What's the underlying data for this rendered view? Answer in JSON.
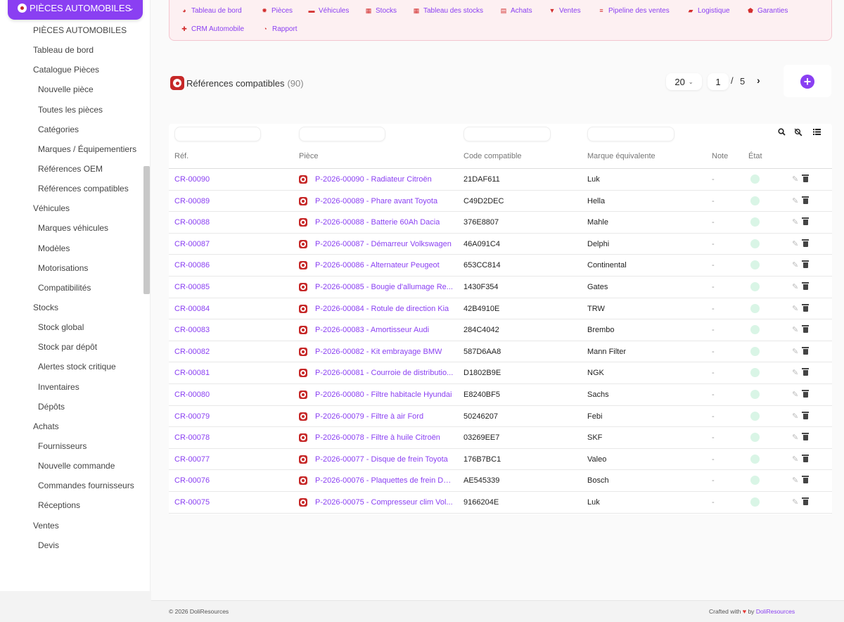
{
  "sidebar": {
    "brand": "PIÈCES AUTOMOBILES",
    "items": [
      {
        "label": "PIÈCES AUTOMOBILES",
        "sub": false
      },
      {
        "label": "Tableau de bord",
        "sub": false
      },
      {
        "label": "Catalogue Pièces",
        "sub": false
      },
      {
        "label": "Nouvelle pièce",
        "sub": true
      },
      {
        "label": "Toutes les pièces",
        "sub": true
      },
      {
        "label": "Catégories",
        "sub": true
      },
      {
        "label": "Marques / Équipementiers",
        "sub": true
      },
      {
        "label": "Références OEM",
        "sub": true
      },
      {
        "label": "Références compatibles",
        "sub": true
      },
      {
        "label": "Véhicules",
        "sub": false
      },
      {
        "label": "Marques véhicules",
        "sub": true
      },
      {
        "label": "Modèles",
        "sub": true
      },
      {
        "label": "Motorisations",
        "sub": true
      },
      {
        "label": "Compatibilités",
        "sub": true
      },
      {
        "label": "Stocks",
        "sub": false
      },
      {
        "label": "Stock global",
        "sub": true
      },
      {
        "label": "Stock par dépôt",
        "sub": true
      },
      {
        "label": "Alertes stock critique",
        "sub": true
      },
      {
        "label": "Inventaires",
        "sub": true
      },
      {
        "label": "Dépôts",
        "sub": true
      },
      {
        "label": "Achats",
        "sub": false
      },
      {
        "label": "Fournisseurs",
        "sub": true
      },
      {
        "label": "Nouvelle commande",
        "sub": true
      },
      {
        "label": "Commandes fournisseurs",
        "sub": true
      },
      {
        "label": "Réceptions",
        "sub": true
      },
      {
        "label": "Ventes",
        "sub": false
      },
      {
        "label": "Devis",
        "sub": true
      }
    ]
  },
  "topnav": [
    {
      "label": "Tableau de bord",
      "icon": "dashboard-icon",
      "glyph": "◕"
    },
    {
      "label": "Pièces",
      "icon": "gear-icon",
      "glyph": "✹"
    },
    {
      "label": "Véhicules",
      "icon": "car-icon",
      "glyph": "▬"
    },
    {
      "label": "Stocks",
      "icon": "boxes-icon",
      "glyph": "▦"
    },
    {
      "label": "Tableau des stocks",
      "icon": "table-icon",
      "glyph": "▦"
    },
    {
      "label": "Achats",
      "icon": "invoice-icon",
      "glyph": "▤"
    },
    {
      "label": "Ventes",
      "icon": "cart-icon",
      "glyph": "▼"
    },
    {
      "label": "Pipeline des ventes",
      "icon": "pipeline-icon",
      "glyph": "≡"
    },
    {
      "label": "Logistique",
      "icon": "truck-icon",
      "glyph": "▰"
    },
    {
      "label": "Garanties",
      "icon": "shield-icon",
      "glyph": "⬟"
    },
    {
      "label": "CRM Automobile",
      "icon": "user-plus-icon",
      "glyph": "✚"
    },
    {
      "label": "Rapport",
      "icon": "pie-chart-icon",
      "glyph": "◔"
    }
  ],
  "page": {
    "title": "Références compatibles",
    "count": "(90)"
  },
  "pager": {
    "limit": "20",
    "page": "1",
    "separator": "/",
    "total": "5"
  },
  "table": {
    "headers": [
      "Réf.",
      "Pièce",
      "Code compatible",
      "Marque équivalente",
      "Note",
      "État"
    ],
    "rows": [
      {
        "ref": "CR-00090",
        "piece": "P-2026-00090 - Radiateur Citroën",
        "code": "21DAF611",
        "brand": "Luk",
        "note": "-"
      },
      {
        "ref": "CR-00089",
        "piece": "P-2026-00089 - Phare avant Toyota",
        "code": "C49D2DEC",
        "brand": "Hella",
        "note": "-"
      },
      {
        "ref": "CR-00088",
        "piece": "P-2026-00088 - Batterie 60Ah Dacia",
        "code": "376E8807",
        "brand": "Mahle",
        "note": "-"
      },
      {
        "ref": "CR-00087",
        "piece": "P-2026-00087 - Démarreur Volkswagen",
        "code": "46A091C4",
        "brand": "Delphi",
        "note": "-"
      },
      {
        "ref": "CR-00086",
        "piece": "P-2026-00086 - Alternateur Peugeot",
        "code": "653CC814",
        "brand": "Continental",
        "note": "-"
      },
      {
        "ref": "CR-00085",
        "piece": "P-2026-00085 - Bougie d'allumage Re...",
        "code": "1430F354",
        "brand": "Gates",
        "note": "-"
      },
      {
        "ref": "CR-00084",
        "piece": "P-2026-00084 - Rotule de direction Kia",
        "code": "42B4910E",
        "brand": "TRW",
        "note": "-"
      },
      {
        "ref": "CR-00083",
        "piece": "P-2026-00083 - Amortisseur Audi",
        "code": "284C4042",
        "brand": "Brembo",
        "note": "-"
      },
      {
        "ref": "CR-00082",
        "piece": "P-2026-00082 - Kit embrayage BMW",
        "code": "587D6AA8",
        "brand": "Mann Filter",
        "note": "-"
      },
      {
        "ref": "CR-00081",
        "piece": "P-2026-00081 - Courroie de distributio...",
        "code": "D1802B9E",
        "brand": "NGK",
        "note": "-"
      },
      {
        "ref": "CR-00080",
        "piece": "P-2026-00080 - Filtre habitacle Hyundai",
        "code": "E8240BF5",
        "brand": "Sachs",
        "note": "-"
      },
      {
        "ref": "CR-00079",
        "piece": "P-2026-00079 - Filtre à air Ford",
        "code": "50246207",
        "brand": "Febi",
        "note": "-"
      },
      {
        "ref": "CR-00078",
        "piece": "P-2026-00078 - Filtre à huile Citroën",
        "code": "03269EE7",
        "brand": "SKF",
        "note": "-"
      },
      {
        "ref": "CR-00077",
        "piece": "P-2026-00077 - Disque de frein Toyota",
        "code": "176B7BC1",
        "brand": "Valeo",
        "note": "-"
      },
      {
        "ref": "CR-00076",
        "piece": "P-2026-00076 - Plaquettes de frein Da...",
        "code": "AE545339",
        "brand": "Bosch",
        "note": "-"
      },
      {
        "ref": "CR-00075",
        "piece": "P-2026-00075 - Compresseur clim Vol...",
        "code": "9166204E",
        "brand": "Luk",
        "note": "-"
      }
    ]
  },
  "footer": {
    "copyright": "© 2026 DoliResources",
    "crafted": "Crafted with",
    "by": "by",
    "link": "DoliResources"
  },
  "colors": {
    "accent": "#8a3ff2",
    "brand_red": "#c62828",
    "status_green": "#d9f5e6",
    "nav_bg": "#fdf0f2"
  }
}
